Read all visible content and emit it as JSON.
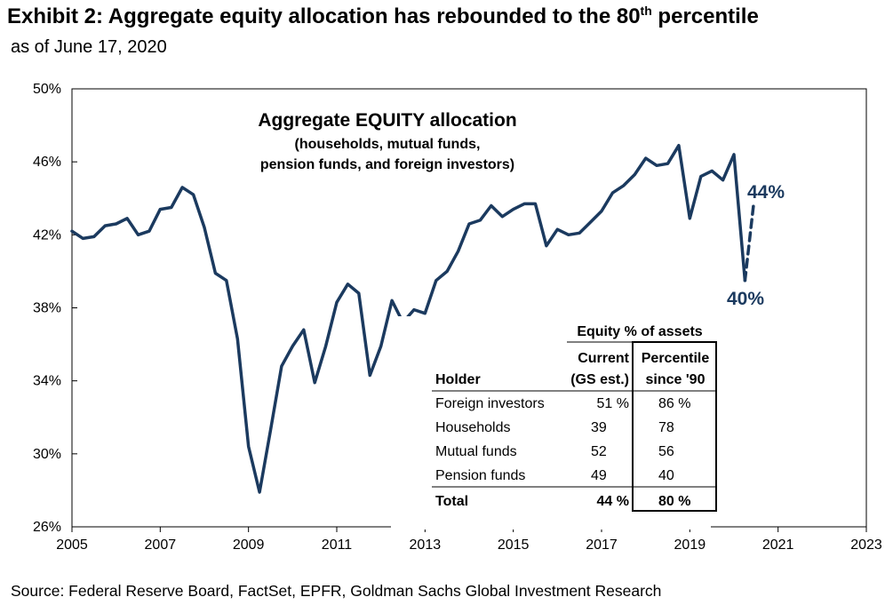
{
  "header": {
    "title_main": "Exhibit 2: Aggregate equity allocation has rebounded to the 80",
    "title_sup": "th",
    "title_end": " percentile",
    "subtitle": "as of June 17, 2020"
  },
  "source": "Source: Federal Reserve Board, FactSet, EPFR, Goldman Sachs Global Investment Research",
  "colors": {
    "line": "#1b3a5f",
    "axis": "#000000"
  },
  "chart_data": {
    "type": "line",
    "title": "Aggregate EQUITY allocation",
    "subtitle_lines": [
      "(households,  mutual funds,",
      "pension funds,  and foreign investors)"
    ],
    "xlabel": "",
    "ylabel": "",
    "xlim": [
      2005,
      2023
    ],
    "ylim": [
      26,
      50
    ],
    "x_ticks": [
      "2005",
      "2007",
      "2009",
      "2011",
      "2013",
      "2015",
      "2017",
      "2019",
      "2021",
      "2023"
    ],
    "y_ticks": [
      "26%",
      "30%",
      "34%",
      "38%",
      "42%",
      "46%",
      "50%"
    ],
    "series": [
      {
        "name": "Aggregate equity allocation",
        "style": "solid",
        "x": [
          2005.0,
          2005.25,
          2005.5,
          2005.75,
          2006.0,
          2006.25,
          2006.5,
          2006.75,
          2007.0,
          2007.25,
          2007.5,
          2007.75,
          2008.0,
          2008.25,
          2008.5,
          2008.75,
          2009.0,
          2009.25,
          2009.5,
          2009.75,
          2010.0,
          2010.25,
          2010.5,
          2010.75,
          2011.0,
          2011.25,
          2011.5,
          2011.75,
          2012.0,
          2012.25,
          2012.5,
          2012.75,
          2013.0,
          2013.25,
          2013.5,
          2013.75,
          2014.0,
          2014.25,
          2014.5,
          2014.75,
          2015.0,
          2015.25,
          2015.5,
          2015.75,
          2016.0,
          2016.25,
          2016.5,
          2016.75,
          2017.0,
          2017.25,
          2017.5,
          2017.75,
          2018.0,
          2018.25,
          2018.5,
          2018.75,
          2019.0,
          2019.25,
          2019.5,
          2019.75,
          2020.0,
          2020.25
        ],
        "y": [
          42.2,
          41.8,
          41.9,
          42.5,
          42.6,
          42.9,
          42.0,
          42.2,
          43.4,
          43.5,
          44.6,
          44.2,
          42.4,
          39.9,
          39.5,
          36.3,
          30.4,
          27.9,
          31.3,
          34.8,
          35.9,
          36.8,
          33.9,
          35.9,
          38.3,
          39.3,
          38.8,
          34.3,
          35.9,
          38.4,
          37.2,
          37.9,
          37.7,
          39.5,
          40.0,
          41.1,
          42.6,
          42.8,
          43.6,
          43.0,
          43.4,
          43.7,
          43.7,
          41.4,
          42.3,
          42.0,
          42.1,
          42.7,
          43.3,
          44.3,
          44.7,
          45.3,
          46.2,
          45.8,
          45.9,
          46.9,
          42.9,
          45.2,
          45.5,
          45.0,
          46.4,
          39.5
        ]
      },
      {
        "name": "Estimate",
        "style": "dashed",
        "x": [
          2020.25,
          2020.45
        ],
        "y": [
          39.5,
          43.8
        ]
      }
    ],
    "annotations": [
      {
        "text": "44%",
        "x": 2020.6,
        "y": 44.2
      },
      {
        "text": "40%",
        "x": 2020.05,
        "y": 37.5
      }
    ],
    "table": {
      "group_header": "Equity % of assets",
      "headers": [
        "Holder",
        "Current",
        "(GS est.)",
        "Percentile",
        "since '90"
      ],
      "rows": [
        {
          "holder": "Foreign investors",
          "current": "51 %",
          "percentile": "86 %"
        },
        {
          "holder": "Households",
          "current": "39",
          "percentile": "78"
        },
        {
          "holder": "Mutual funds",
          "current": "52",
          "percentile": "56"
        },
        {
          "holder": "Pension funds",
          "current": "49",
          "percentile": "40"
        }
      ],
      "total": {
        "holder": "Total",
        "current": "44 %",
        "percentile": "80 %"
      }
    }
  }
}
